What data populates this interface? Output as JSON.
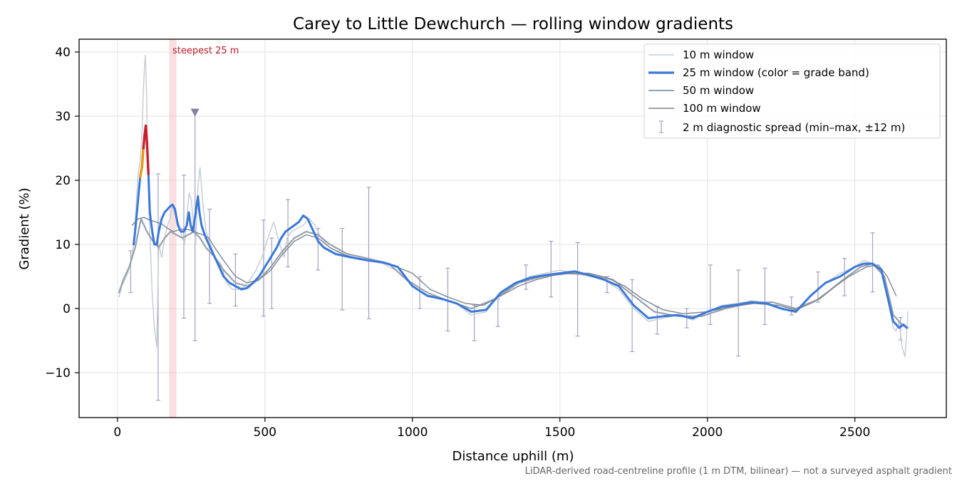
{
  "chart_data": {
    "type": "line",
    "title": "Carey to Little Dewchurch — rolling window gradients",
    "xlabel": "Distance uphill (m)",
    "ylabel": "Gradient (%)",
    "xlim": [
      -130,
      2810
    ],
    "ylim": [
      -17,
      42
    ],
    "xticks": [
      0,
      500,
      1000,
      1500,
      2000,
      2500
    ],
    "xtick_labels": [
      "0",
      "500",
      "1000",
      "1500",
      "2000",
      "2500"
    ],
    "yticks": [
      -10,
      0,
      10,
      20,
      30,
      40
    ],
    "ytick_labels": [
      "−10",
      "0",
      "10",
      "20",
      "30",
      "40"
    ],
    "grid": true,
    "legend_position": "top-right",
    "footnote": "LiDAR-derived road-centreline profile (1 m DTM, bilinear) — not a surveyed asphalt gradient",
    "steepest_band": {
      "label": "steepest 25 m",
      "x_start": 175,
      "x_end": 200,
      "color": "#f3b9bb"
    },
    "max_marker": {
      "x": 263,
      "y": 30.5,
      "color": "#857fa3"
    },
    "colors": {
      "w10": "#c7ced6",
      "w25": "#3a78d8",
      "w50": "#97a2af",
      "w100": "#7d8590",
      "err": "#a5a0c0",
      "orange": "#e8960c",
      "red": "#c8202a"
    },
    "series": [
      {
        "name": "10 m window",
        "x": [
          5,
          15,
          25,
          35,
          45,
          55,
          62,
          70,
          77,
          83,
          88,
          92,
          95,
          99,
          103,
          108,
          113,
          118,
          125,
          133,
          140,
          150,
          160,
          170,
          178,
          185,
          193,
          200,
          210,
          220,
          228,
          235,
          243,
          250,
          258,
          265,
          273,
          280,
          290,
          300,
          315,
          330,
          350,
          370,
          390,
          410,
          430,
          450,
          470,
          490,
          510,
          530,
          550,
          565,
          575,
          590,
          610,
          630,
          650,
          670,
          690,
          720,
          760,
          800,
          850,
          900,
          950,
          1000,
          1050,
          1100,
          1150,
          1200,
          1250,
          1300,
          1350,
          1400,
          1450,
          1500,
          1550,
          1600,
          1650,
          1700,
          1750,
          1800,
          1850,
          1900,
          1950,
          2000,
          2050,
          2100,
          2150,
          2200,
          2250,
          2300,
          2350,
          2400,
          2450,
          2500,
          2530,
          2560,
          2590,
          2610,
          2630,
          2640,
          2650,
          2660,
          2670,
          2680
        ],
        "y": [
          1.8,
          3.5,
          4.5,
          5.5,
          7,
          10,
          15,
          21,
          23,
          27,
          34,
          38,
          39.5,
          33,
          22,
          14,
          8,
          2,
          -3,
          -6,
          10,
          8,
          11,
          13,
          14,
          16,
          15,
          14,
          13,
          11,
          10,
          14,
          18,
          17,
          13,
          10,
          19,
          22,
          16,
          12,
          10,
          8,
          7,
          4,
          3,
          3,
          3.5,
          4.5,
          6,
          8,
          11,
          13.5,
          10,
          8,
          11,
          12,
          12.5,
          13,
          14,
          13,
          11,
          9.5,
          8.5,
          8,
          7.5,
          7,
          5.8,
          3.5,
          2,
          1.5,
          0.8,
          -1,
          -0.5,
          2.5,
          4,
          5,
          5.5,
          6,
          5.5,
          5,
          4.5,
          3,
          0,
          -2,
          -1.5,
          -1,
          -1.8,
          -0.5,
          0.5,
          0.8,
          1.2,
          1,
          0,
          -0.3,
          2,
          4,
          5.5,
          6.5,
          7.5,
          7,
          6,
          2,
          -3,
          -3.5,
          -2,
          -6,
          -7.5,
          -0.5
        ]
      },
      {
        "name": "25 m window (color = grade band)",
        "x": [
          55,
          62,
          70,
          77,
          83,
          88,
          92,
          96,
          100,
          105,
          110,
          118,
          125,
          133,
          140,
          150,
          160,
          170,
          180,
          187,
          195,
          205,
          215,
          225,
          235,
          242,
          248,
          255,
          262,
          268,
          273,
          278,
          285,
          292,
          300,
          310,
          320,
          330,
          340,
          360,
          380,
          400,
          420,
          440,
          460,
          480,
          500,
          520,
          540,
          555,
          570,
          585,
          600,
          615,
          630,
          645,
          660,
          680,
          700,
          740,
          790,
          850,
          900,
          950,
          1000,
          1050,
          1100,
          1150,
          1200,
          1250,
          1300,
          1350,
          1400,
          1450,
          1500,
          1550,
          1600,
          1650,
          1700,
          1750,
          1800,
          1850,
          1900,
          1950,
          2000,
          2050,
          2100,
          2150,
          2200,
          2250,
          2300,
          2350,
          2400,
          2450,
          2500,
          2530,
          2560,
          2590,
          2610,
          2630,
          2650,
          2665,
          2675
        ],
        "y": [
          10,
          13,
          17,
          20.5,
          22,
          25,
          27,
          28.5,
          26,
          21,
          15,
          12,
          10,
          10,
          12,
          14,
          15,
          15.5,
          16,
          16.2,
          15.5,
          13,
          12,
          12,
          13,
          15,
          13,
          12,
          14,
          16,
          17.5,
          15,
          13,
          12,
          11,
          10,
          9,
          8,
          7,
          5,
          4,
          3.5,
          3,
          3.2,
          4,
          5,
          6.5,
          8,
          9.5,
          11,
          12,
          12.5,
          13,
          13.5,
          14.5,
          14,
          12.5,
          10.5,
          9.5,
          8.5,
          8,
          7.5,
          7.2,
          6.5,
          3.5,
          2,
          1.5,
          0.8,
          -0.5,
          -0.2,
          2.5,
          4,
          4.8,
          5.2,
          5.5,
          5.8,
          5.2,
          4.5,
          3.5,
          0.5,
          -1.5,
          -1.2,
          -1,
          -1.5,
          -0.5,
          0.3,
          0.6,
          1,
          0.8,
          0,
          -0.5,
          2,
          4,
          5,
          6.5,
          7,
          7,
          6,
          2,
          -2,
          -3,
          -2.5,
          -3
        ]
      },
      {
        "name": "50 m window",
        "x": [
          5,
          20,
          40,
          60,
          80,
          100,
          120,
          140,
          160,
          180,
          200,
          220,
          240,
          260,
          280,
          300,
          330,
          360,
          400,
          440,
          480,
          520,
          560,
          600,
          640,
          680,
          720,
          780,
          850,
          920,
          980,
          1050,
          1120,
          1200,
          1280,
          1360,
          1440,
          1520,
          1600,
          1680,
          1750,
          1820,
          1900,
          1980,
          2060,
          2140,
          2220,
          2300,
          2380,
          2460,
          2520,
          2560,
          2600,
          2630,
          2660,
          2680
        ],
        "y": [
          2.5,
          4.5,
          6.5,
          9.5,
          14,
          12,
          10.5,
          9.5,
          11,
          12,
          11.5,
          11,
          11.5,
          12,
          11,
          9.5,
          8,
          6,
          4,
          3.5,
          4.5,
          6.5,
          9,
          11,
          12,
          11.5,
          10,
          8.5,
          7.8,
          7,
          4.5,
          2.5,
          1.2,
          0,
          1.5,
          4,
          5,
          5.5,
          5.3,
          4.5,
          2,
          -0.5,
          -1.2,
          -1.2,
          0,
          0.8,
          1,
          0,
          1.5,
          4.5,
          6.5,
          7,
          5,
          -1,
          -2.5,
          -3
        ]
      },
      {
        "name": "100 m window",
        "x": [
          50,
          70,
          90,
          110,
          130,
          150,
          170,
          190,
          210,
          230,
          250,
          270,
          290,
          310,
          330,
          360,
          400,
          440,
          480,
          520,
          560,
          600,
          640,
          680,
          720,
          780,
          850,
          920,
          1000,
          1060,
          1120,
          1180,
          1240,
          1300,
          1360,
          1420,
          1480,
          1540,
          1600,
          1660,
          1720,
          1780,
          1850,
          1920,
          2000,
          2080,
          2160,
          2240,
          2300,
          2360,
          2420,
          2480,
          2540,
          2580,
          2610,
          2640
        ],
        "y": [
          13,
          14,
          14.2,
          13.8,
          13.5,
          13.2,
          12.5,
          12,
          12.3,
          12.4,
          12.2,
          11.8,
          11.5,
          11,
          9.5,
          7.5,
          5,
          4,
          4.5,
          6,
          8.5,
          10.5,
          11.5,
          11,
          9.5,
          8.2,
          7.5,
          7,
          5.5,
          3,
          1.8,
          0.8,
          0.5,
          2,
          3.5,
          4.5,
          5.2,
          5.5,
          5.5,
          4.8,
          3.5,
          1.5,
          -0.2,
          -0.8,
          -0.5,
          0.3,
          0.8,
          0.5,
          -0.2,
          1,
          3,
          5,
          6.5,
          6.8,
          5,
          2
        ]
      }
    ],
    "diagnostic_spread": {
      "name": "2 m diagnostic spread (min–max, ±12 m)",
      "bars": [
        {
          "x": 45,
          "lo": 2.5,
          "hi": 9
        },
        {
          "x": 138,
          "lo": -14.3,
          "hi": 21
        },
        {
          "x": 225,
          "lo": -1.5,
          "hi": 20.8
        },
        {
          "x": 263,
          "lo": -5,
          "hi": 30.5
        },
        {
          "x": 312,
          "lo": 0.8,
          "hi": 15.5
        },
        {
          "x": 400,
          "lo": 0.4,
          "hi": 8.5
        },
        {
          "x": 495,
          "lo": -1.2,
          "hi": 13.8
        },
        {
          "x": 523,
          "lo": 0,
          "hi": 11
        },
        {
          "x": 578,
          "lo": 6.5,
          "hi": 17
        },
        {
          "x": 680,
          "lo": 6,
          "hi": 12.5
        },
        {
          "x": 762,
          "lo": -0.2,
          "hi": 12.5
        },
        {
          "x": 852,
          "lo": -1.6,
          "hi": 18.9
        },
        {
          "x": 1025,
          "lo": 0,
          "hi": 5
        },
        {
          "x": 1120,
          "lo": -3.5,
          "hi": 6.3
        },
        {
          "x": 1210,
          "lo": -5,
          "hi": 0.5
        },
        {
          "x": 1290,
          "lo": -2.8,
          "hi": 1.5
        },
        {
          "x": 1385,
          "lo": 3,
          "hi": 6.8
        },
        {
          "x": 1470,
          "lo": 1.8,
          "hi": 10.5
        },
        {
          "x": 1560,
          "lo": -4.3,
          "hi": 10.3
        },
        {
          "x": 1660,
          "lo": 2.5,
          "hi": 5
        },
        {
          "x": 1745,
          "lo": -6.7,
          "hi": 4.5
        },
        {
          "x": 1830,
          "lo": -4,
          "hi": 0.3
        },
        {
          "x": 1930,
          "lo": -3,
          "hi": 0
        },
        {
          "x": 2010,
          "lo": -2.5,
          "hi": 6.8
        },
        {
          "x": 2105,
          "lo": -7.4,
          "hi": 6
        },
        {
          "x": 2195,
          "lo": -2.5,
          "hi": 6.3
        },
        {
          "x": 2285,
          "lo": -1,
          "hi": 1.8
        },
        {
          "x": 2375,
          "lo": 1,
          "hi": 5.7
        },
        {
          "x": 2465,
          "lo": 2,
          "hi": 7.8
        },
        {
          "x": 2560,
          "lo": 2.6,
          "hi": 11.8
        },
        {
          "x": 2655,
          "lo": -4.9,
          "hi": -1.4
        }
      ]
    }
  }
}
